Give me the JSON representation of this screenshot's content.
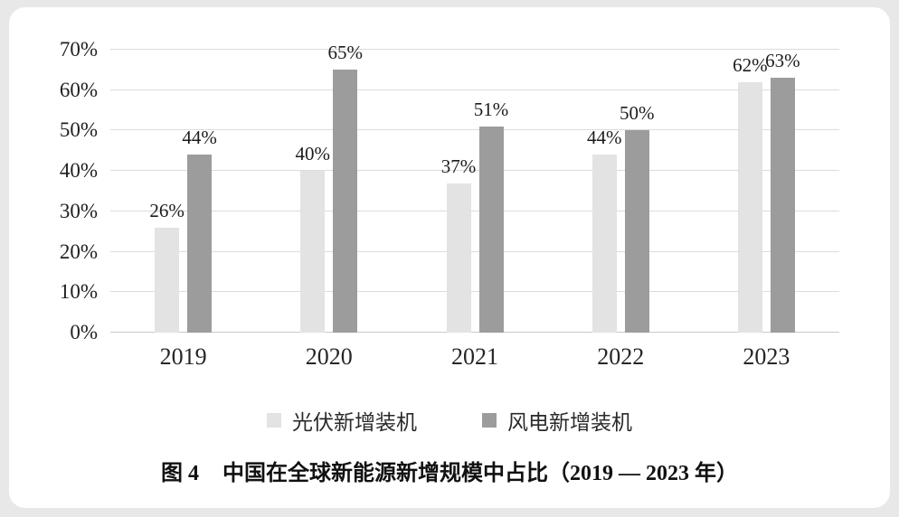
{
  "page": {
    "background_color": "#e8e8e8",
    "card_color": "#ffffff"
  },
  "chart_data": {
    "type": "bar",
    "categories": [
      "2019",
      "2020",
      "2021",
      "2022",
      "2023"
    ],
    "series": [
      {
        "name": "光伏新增装机",
        "color": "#e3e3e3",
        "values": [
          26,
          40,
          37,
          44,
          62
        ]
      },
      {
        "name": "风电新增装机",
        "color": "#9c9c9c",
        "values": [
          44,
          65,
          51,
          50,
          63
        ]
      }
    ],
    "value_suffix": "%",
    "ylim": [
      0,
      70
    ],
    "y_tick_step": 10,
    "y_tick_labels": [
      "0%",
      "10%",
      "20%",
      "30%",
      "40%",
      "50%",
      "60%",
      "70%"
    ],
    "grid": true,
    "legend_position": "bottom",
    "title": "图 4　中国在全球新能源新增规模中占比（2019 — 2023 年）"
  },
  "caption": {
    "prefix": "图 4",
    "text": "中国在全球新能源新增规模中占比（2019 — 2023 年）"
  }
}
